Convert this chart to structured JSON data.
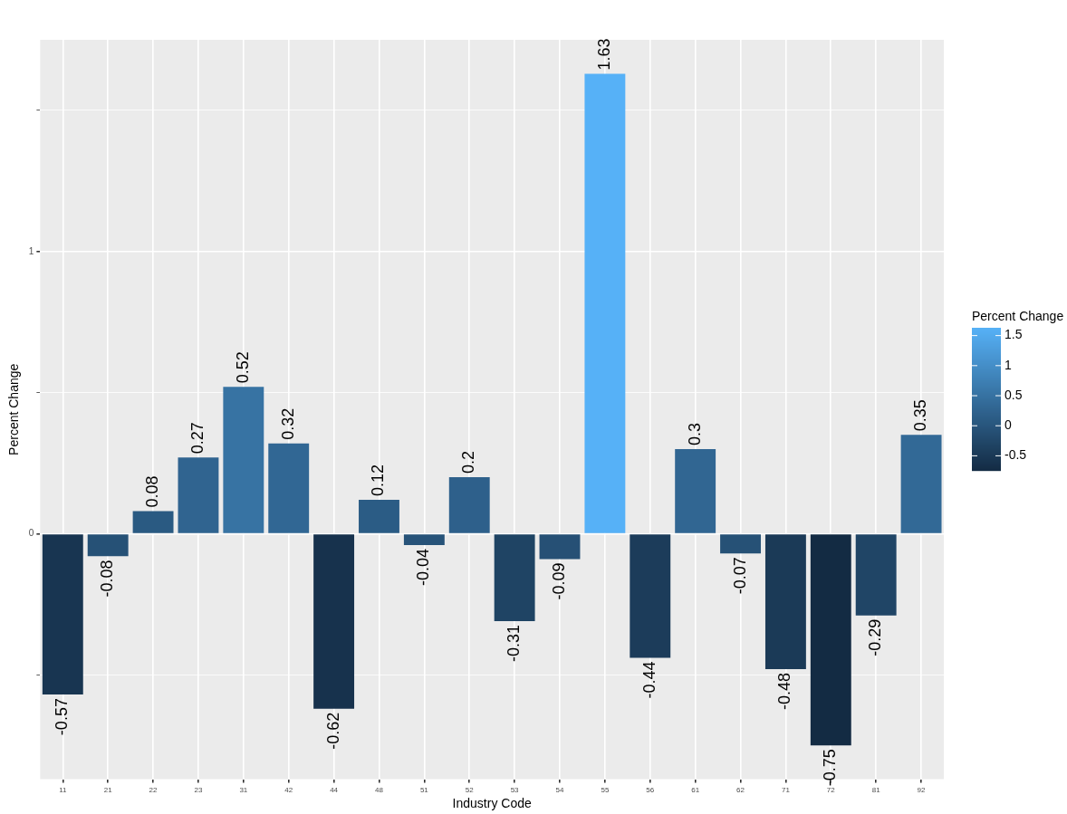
{
  "chart_data": {
    "type": "bar",
    "xlabel": "Industry Code",
    "ylabel": "Percent Change",
    "clabel": "Percent Change",
    "categories": [
      "11",
      "21",
      "22",
      "23",
      "31",
      "42",
      "44",
      "48",
      "51",
      "52",
      "53",
      "54",
      "55",
      "56",
      "61",
      "62",
      "71",
      "72",
      "81",
      "92"
    ],
    "values": [
      -0.57,
      -0.08,
      0.08,
      0.27,
      0.52,
      0.32,
      -0.62,
      0.12,
      -0.04,
      0.2,
      -0.31,
      -0.09,
      1.63,
      -0.44,
      0.3,
      -0.07,
      -0.48,
      -0.75,
      -0.29,
      0.35
    ],
    "colors": [
      "#183551",
      "#265176",
      "#2a5a82",
      "#306490",
      "#3773a3",
      "#316794",
      "#17324d",
      "#2b5c85",
      "#275379",
      "#2e608b",
      "#1f4464",
      "#265075",
      "#56b1f7",
      "#1c3c5a",
      "#316692",
      "#265176",
      "#1b3a57",
      "#132b43",
      "#204566",
      "#326996"
    ],
    "ylim": [
      -0.87,
      1.75
    ],
    "yticks": [
      {
        "value": -0.5,
        "label": null
      },
      0,
      {
        "value": 0.5,
        "label": null
      },
      1,
      {
        "value": 1.5,
        "label": null
      }
    ],
    "clim": [
      -0.75,
      1.63
    ],
    "cticks": [
      -0.5,
      0,
      0.5,
      1,
      1.5
    ],
    "grid": true,
    "data_labels": true
  }
}
